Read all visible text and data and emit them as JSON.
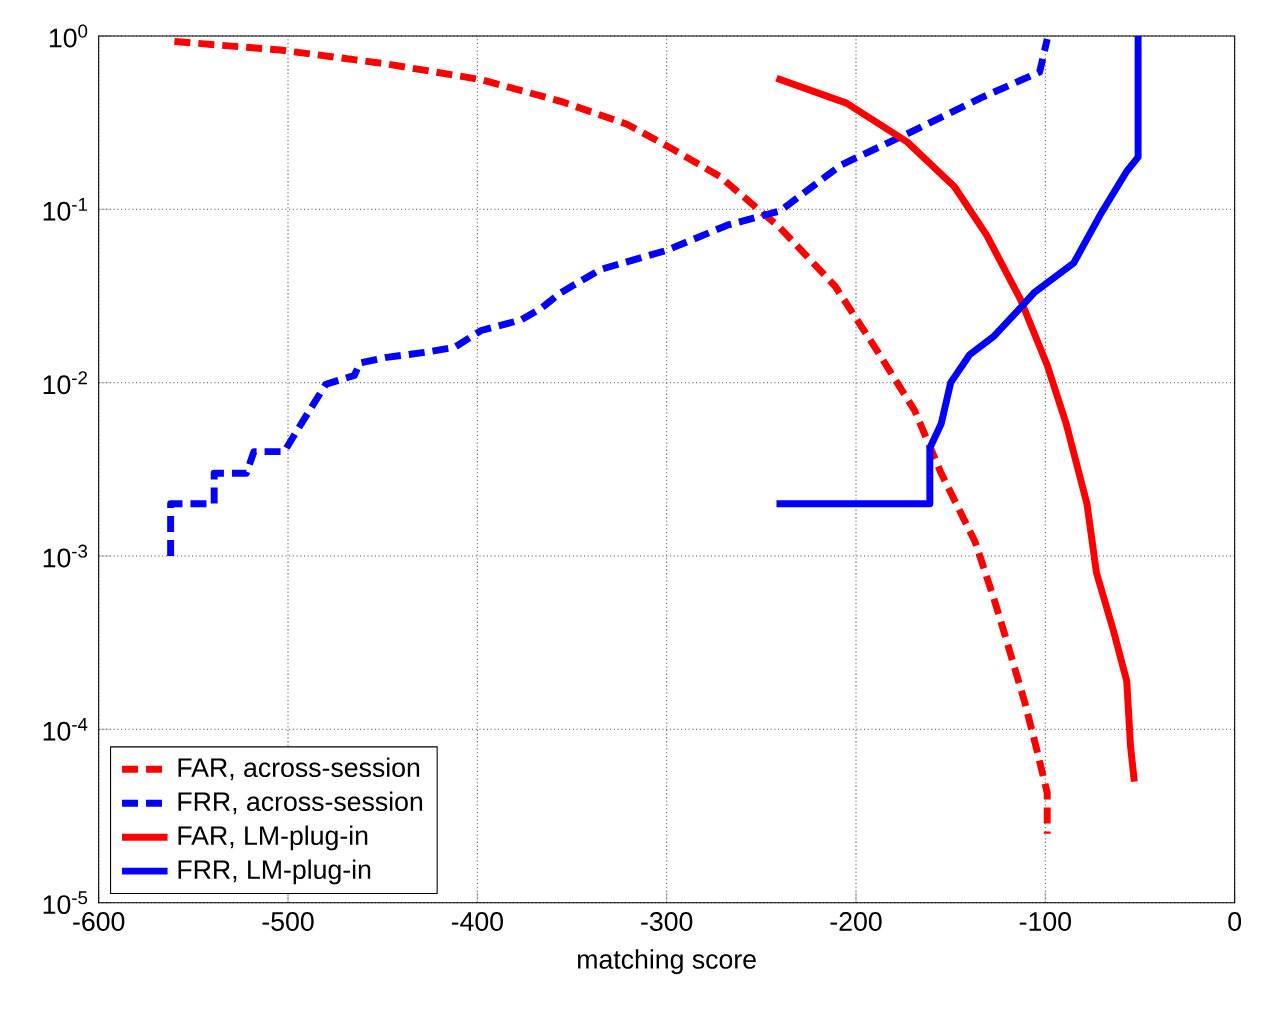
{
  "chart_data": {
    "type": "line",
    "xlabel": "matching score",
    "log": "y",
    "grid": true,
    "legend": "bottom left",
    "xlim": [
      -600,
      0
    ],
    "ylim": [
      1e-05,
      1
    ],
    "xticks": [
      -600,
      -500,
      -400,
      -300,
      -200,
      -100,
      0
    ],
    "yticks": [
      {
        "value": 1e-05,
        "label": "10$^{-5}$"
      },
      {
        "value": 0.0001,
        "label": "10$^{-4}$"
      },
      {
        "value": 0.001,
        "label": "10$^{-3}$"
      },
      {
        "value": 0.01,
        "label": "10$^{-2}$"
      },
      {
        "value": 0.1,
        "label": "10$^{-1}$"
      },
      {
        "value": 1,
        "label": "10$^{0}$"
      }
    ],
    "series": [
      {
        "name": "FAR, across-session",
        "color": "#ff0000",
        "line_style": "dashed",
        "x": [
          -560,
          -504,
          -448,
          -398,
          -356,
          -321,
          -296,
          -272,
          -240,
          -211,
          -190,
          -169,
          -155,
          -137,
          -127,
          -121,
          -111,
          -105,
          -99,
          -99
        ],
        "values": [
          0.93,
          0.83,
          0.69,
          0.56,
          0.42,
          0.31,
          0.22,
          0.155,
          0.078,
          0.036,
          0.016,
          0.0069,
          0.003,
          0.0012,
          0.00056,
          0.00034,
          0.000145,
          8e-05,
          4.3e-05,
          2.5e-05
        ]
      },
      {
        "name": "FRR, across-session",
        "color": "#0000ff",
        "line_style": "dashed",
        "x": [
          -562,
          -562,
          -539,
          -539,
          -522,
          -518,
          -502,
          -493,
          -480,
          -465,
          -462,
          -448,
          -427,
          -412,
          -398,
          -377,
          -366,
          -356,
          -335,
          -300,
          -268,
          -240,
          -208,
          -177,
          -134,
          -103,
          -99
        ],
        "values": [
          0.001,
          0.002,
          0.002,
          0.003,
          0.003,
          0.004,
          0.004,
          0.0058,
          0.0098,
          0.011,
          0.013,
          0.014,
          0.015,
          0.016,
          0.02,
          0.023,
          0.027,
          0.033,
          0.045,
          0.058,
          0.081,
          0.098,
          0.18,
          0.26,
          0.44,
          0.62,
          0.96
        ]
      },
      {
        "name": "FAR, LM-plug-in",
        "color": "#ff0000",
        "line_style": "solid",
        "x": [
          -242,
          -205,
          -173,
          -148,
          -131,
          -113,
          -99,
          -89,
          -78,
          -73,
          -64,
          -57,
          -55,
          -53
        ],
        "values": [
          0.57,
          0.41,
          0.245,
          0.135,
          0.071,
          0.03,
          0.0126,
          0.0058,
          0.002,
          0.0008,
          0.00037,
          0.00019,
          8e-05,
          5e-05
        ]
      },
      {
        "name": "FRR, LM-plug-in",
        "color": "#0000ff",
        "line_style": "solid",
        "x": [
          -242,
          -161,
          -161,
          -155,
          -150,
          -140,
          -127,
          -116,
          -106,
          -85,
          -71,
          -57,
          -51,
          -51
        ],
        "values": [
          0.002,
          0.002,
          0.0042,
          0.0058,
          0.01,
          0.0145,
          0.0186,
          0.025,
          0.033,
          0.049,
          0.093,
          0.166,
          0.2,
          1.0
        ]
      }
    ]
  }
}
